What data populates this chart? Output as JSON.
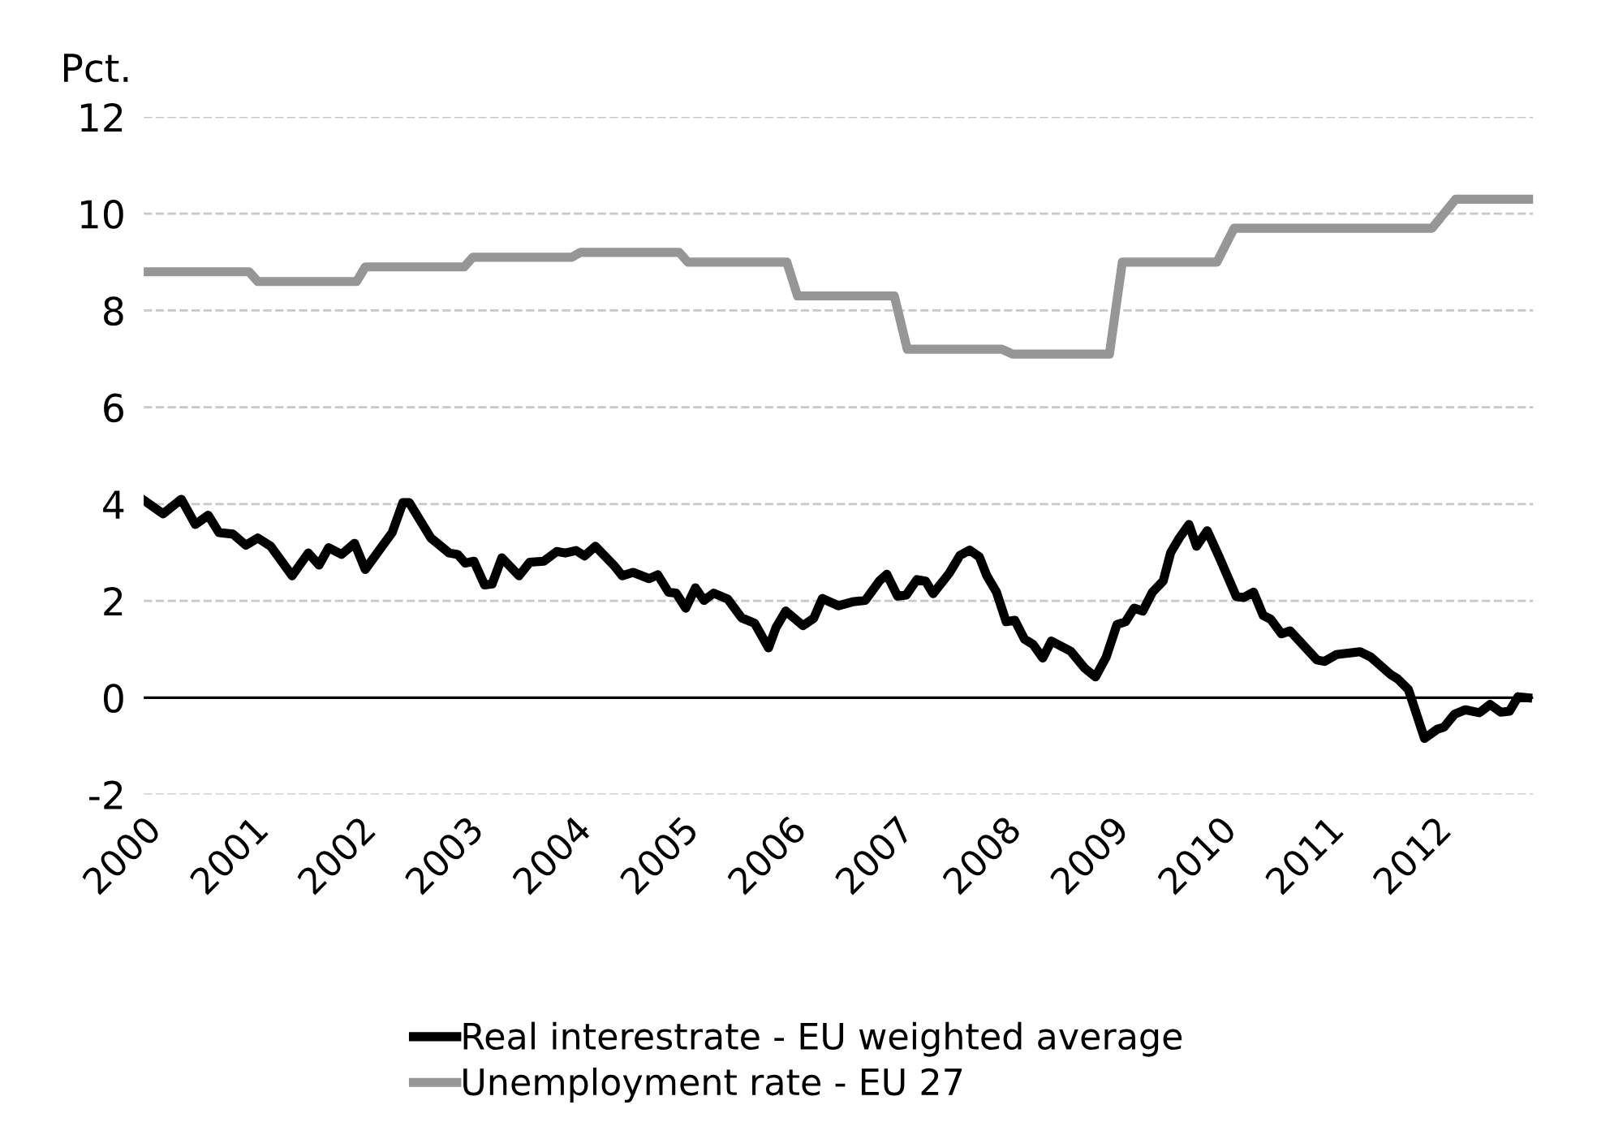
{
  "chart_data": {
    "type": "line",
    "ylabel": "Pct.",
    "xlim": [
      2000,
      2012.92
    ],
    "xticks": [
      2000,
      2001,
      2002,
      2003,
      2004,
      2005,
      2006,
      2007,
      2008,
      2009,
      2010,
      2011,
      2012
    ],
    "ylim": [
      -2,
      12
    ],
    "yticks": [
      -2,
      0,
      2,
      4,
      6,
      8,
      10,
      12
    ],
    "grid": "y",
    "legend": "bottom",
    "line_style": "solid",
    "marker": "none",
    "ref_lines": [
      {
        "axis": "y",
        "value": 0,
        "color": "#000000"
      }
    ],
    "series": [
      {
        "name": "Real interestrate - EU weighted average",
        "color": "#000000",
        "x": [
          2000.0,
          2000.18,
          2000.35,
          2000.48,
          2000.6,
          2000.7,
          2000.83,
          2000.95,
          2001.06,
          2001.18,
          2001.38,
          2001.53,
          2001.63,
          2001.72,
          2001.84,
          2001.96,
          2002.06,
          2002.31,
          2002.41,
          2002.47,
          2002.67,
          2002.84,
          2002.92,
          2002.99,
          2003.07,
          2003.17,
          2003.24,
          2003.33,
          2003.49,
          2003.59,
          2003.72,
          2003.84,
          2003.92,
          2004.02,
          2004.1,
          2004.2,
          2004.37,
          2004.45,
          2004.55,
          2004.7,
          2004.78,
          2004.88,
          2004.95,
          2005.04,
          2005.13,
          2005.21,
          2005.3,
          2005.43,
          2005.56,
          2005.68,
          2005.81,
          2005.88,
          2005.97,
          2006.13,
          2006.23,
          2006.31,
          2006.46,
          2006.59,
          2006.71,
          2006.84,
          2006.91,
          2007.01,
          2007.09,
          2007.19,
          2007.27,
          2007.34,
          2007.49,
          2007.59,
          2007.68,
          2007.77,
          2007.84,
          2007.93,
          2008.02,
          2008.1,
          2008.19,
          2008.27,
          2008.36,
          2008.44,
          2008.62,
          2008.75,
          2008.85,
          2008.95,
          2009.05,
          2009.13,
          2009.21,
          2009.29,
          2009.38,
          2009.48,
          2009.55,
          2009.63,
          2009.72,
          2009.79,
          2009.89,
          2010.0,
          2010.16,
          2010.23,
          2010.32,
          2010.41,
          2010.48,
          2010.58,
          2010.66,
          2010.91,
          2010.98,
          2011.09,
          2011.31,
          2011.41,
          2011.6,
          2011.66,
          2011.76,
          2011.91,
          2012.03,
          2012.09,
          2012.19,
          2012.29,
          2012.42,
          2012.52,
          2012.62,
          2012.7,
          2012.78,
          2012.87
        ],
        "values": [
          4.08,
          3.8,
          4.1,
          3.58,
          3.77,
          3.41,
          3.38,
          3.15,
          3.3,
          3.13,
          2.52,
          2.99,
          2.74,
          3.1,
          2.96,
          3.19,
          2.65,
          3.41,
          4.03,
          4.03,
          3.3,
          2.99,
          2.96,
          2.78,
          2.82,
          2.33,
          2.35,
          2.89,
          2.52,
          2.8,
          2.82,
          3.02,
          2.99,
          3.04,
          2.93,
          3.13,
          2.74,
          2.52,
          2.59,
          2.46,
          2.54,
          2.18,
          2.16,
          1.85,
          2.27,
          2.01,
          2.16,
          2.04,
          1.65,
          1.54,
          1.03,
          1.45,
          1.79,
          1.49,
          1.64,
          2.05,
          1.9,
          1.98,
          2.01,
          2.41,
          2.55,
          2.1,
          2.12,
          2.44,
          2.41,
          2.15,
          2.57,
          2.94,
          3.05,
          2.91,
          2.52,
          2.18,
          1.57,
          1.6,
          1.21,
          1.1,
          0.82,
          1.17,
          0.96,
          0.61,
          0.43,
          0.84,
          1.51,
          1.57,
          1.85,
          1.79,
          2.18,
          2.41,
          3.0,
          3.3,
          3.58,
          3.13,
          3.45,
          2.91,
          2.09,
          2.07,
          2.18,
          1.7,
          1.62,
          1.32,
          1.38,
          0.78,
          0.75,
          0.89,
          0.95,
          0.84,
          0.47,
          0.39,
          0.17,
          -0.84,
          -0.65,
          -0.61,
          -0.34,
          -0.25,
          -0.31,
          -0.14,
          -0.3,
          -0.28,
          0.02,
          0.0
        ]
      },
      {
        "name": "Unemployment rate - EU 27",
        "color": "#969696",
        "x": [
          2000.0,
          2000.98,
          2001.06,
          2001.98,
          2002.06,
          2002.98,
          2003.06,
          2003.98,
          2004.06,
          2004.98,
          2005.06,
          2005.98,
          2006.08,
          2006.98,
          2007.1,
          2007.98,
          2008.08,
          2008.98,
          2009.1,
          2009.98,
          2010.14,
          2011.98,
          2012.2,
          2012.9
        ],
        "values": [
          8.8,
          8.8,
          8.6,
          8.6,
          8.9,
          8.9,
          9.1,
          9.1,
          9.2,
          9.2,
          9.0,
          9.0,
          8.3,
          8.3,
          7.2,
          7.2,
          7.1,
          7.1,
          9.0,
          9.0,
          9.7,
          9.7,
          10.3,
          10.3
        ]
      }
    ]
  }
}
